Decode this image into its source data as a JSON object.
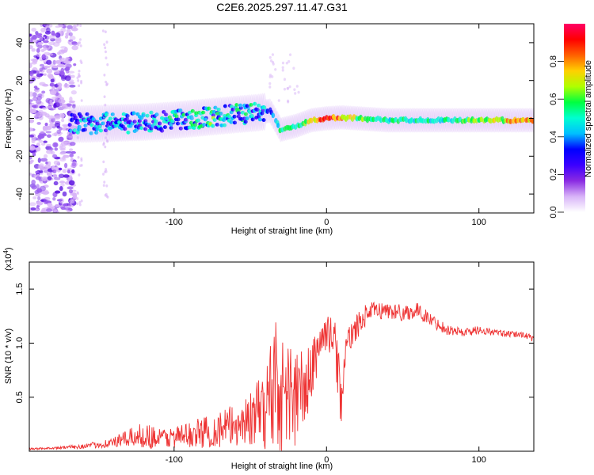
{
  "title": "C2E6.2025.297.11.47.G31",
  "chart_data": [
    {
      "type": "heatmap",
      "xlabel": "Height of straight line (km)",
      "ylabel": "Frequency (Hz)",
      "xlim": [
        -195,
        136
      ],
      "ylim": [
        -50,
        50
      ],
      "xticks": [
        -100,
        0,
        100
      ],
      "xtick_labels": [
        "-100",
        "0",
        "100"
      ],
      "yticks": [
        -40,
        -20,
        0,
        20,
        40
      ],
      "ytick_labels": [
        "-40",
        "-20",
        "0",
        "20",
        "40"
      ],
      "colorbar": {
        "label": "Normalized spectral amplitude",
        "range": [
          0,
          1
        ],
        "ticks": [
          0.0,
          0.2,
          0.4,
          0.6,
          0.8
        ],
        "tick_labels": [
          "0.0",
          "0.2",
          "0.4",
          "0.6",
          "0.8"
        ],
        "colormap": [
          "#ffffff",
          "#d8b4f8",
          "#8a2be2",
          "#3b00ff",
          "#0000ff",
          "#00bfff",
          "#00ffd0",
          "#00ff40",
          "#b0ff00",
          "#ffd000",
          "#ff6000",
          "#ff0000",
          "#ff0066"
        ]
      },
      "ridge_centerline": {
        "x": [
          -160,
          -140,
          -120,
          -100,
          -80,
          -60,
          -45,
          -37,
          -30,
          -20,
          -10,
          0,
          10,
          20,
          40,
          60,
          80,
          100,
          120,
          136
        ],
        "y": [
          -3,
          -2.5,
          -2,
          -1,
          0.5,
          2,
          3,
          4,
          -6,
          -4,
          -1,
          0,
          0.5,
          0,
          -1,
          -1,
          -1,
          -1,
          -1,
          -1
        ]
      },
      "ridge_amplitude": {
        "x": [
          -160,
          -140,
          -120,
          -100,
          -80,
          -60,
          -45,
          -37,
          -30,
          -20,
          -10,
          0,
          10,
          20,
          40,
          60,
          80,
          100,
          120,
          136
        ],
        "v": [
          0.35,
          0.35,
          0.35,
          0.4,
          0.45,
          0.4,
          0.4,
          0.35,
          0.5,
          0.55,
          0.7,
          0.9,
          0.75,
          0.6,
          0.5,
          0.5,
          0.5,
          0.6,
          0.7,
          0.75
        ]
      },
      "noise_region_x": [
        -195,
        -165
      ]
    },
    {
      "type": "line",
      "xlabel": "Height of straight line (km)",
      "ylabel": "SNR (10 * v/v)",
      "y_multiplier_label": "(x10",
      "y_multiplier_exp": "4",
      "y_multiplier_close": ")",
      "xlim": [
        -195,
        136
      ],
      "ylim": [
        0,
        1.75
      ],
      "xticks": [
        -100,
        0,
        100
      ],
      "xtick_labels": [
        "-100",
        "0",
        "100"
      ],
      "yticks": [
        0.5,
        1.0,
        1.5
      ],
      "ytick_labels": [
        "0.5",
        "1.0",
        "1.5"
      ],
      "series": [
        {
          "name": "SNR",
          "color": "#ee3333",
          "x": [
            -195,
            -180,
            -165,
            -150,
            -140,
            -130,
            -120,
            -110,
            -100,
            -90,
            -80,
            -70,
            -60,
            -50,
            -45,
            -40,
            -36,
            -34,
            -32,
            -30,
            -25,
            -20,
            -15,
            -10,
            -5,
            0,
            5,
            8,
            10,
            12,
            15,
            20,
            25,
            30,
            40,
            50,
            60,
            70,
            80,
            90,
            100,
            110,
            120,
            130,
            136
          ],
          "y": [
            0.02,
            0.03,
            0.04,
            0.06,
            0.08,
            0.12,
            0.15,
            0.12,
            0.13,
            0.15,
            0.18,
            0.2,
            0.24,
            0.3,
            0.35,
            0.4,
            0.55,
            0.75,
            0.6,
            0.5,
            0.55,
            0.5,
            0.55,
            0.7,
            1.0,
            1.1,
            1.05,
            0.7,
            0.45,
            0.85,
            1.05,
            1.15,
            1.25,
            1.3,
            1.3,
            1.28,
            1.3,
            1.2,
            1.12,
            1.1,
            1.12,
            1.1,
            1.08,
            1.08,
            1.03
          ],
          "noise_amplitude": [
            0.01,
            0.01,
            0.02,
            0.03,
            0.05,
            0.08,
            0.12,
            0.1,
            0.1,
            0.12,
            0.15,
            0.18,
            0.2,
            0.25,
            0.3,
            0.4,
            0.6,
            0.8,
            0.6,
            0.55,
            0.5,
            0.5,
            0.4,
            0.3,
            0.2,
            0.15,
            0.2,
            0.3,
            0.25,
            0.15,
            0.12,
            0.12,
            0.1,
            0.08,
            0.08,
            0.08,
            0.07,
            0.06,
            0.05,
            0.04,
            0.04,
            0.03,
            0.03,
            0.03,
            0.03
          ]
        }
      ]
    }
  ]
}
